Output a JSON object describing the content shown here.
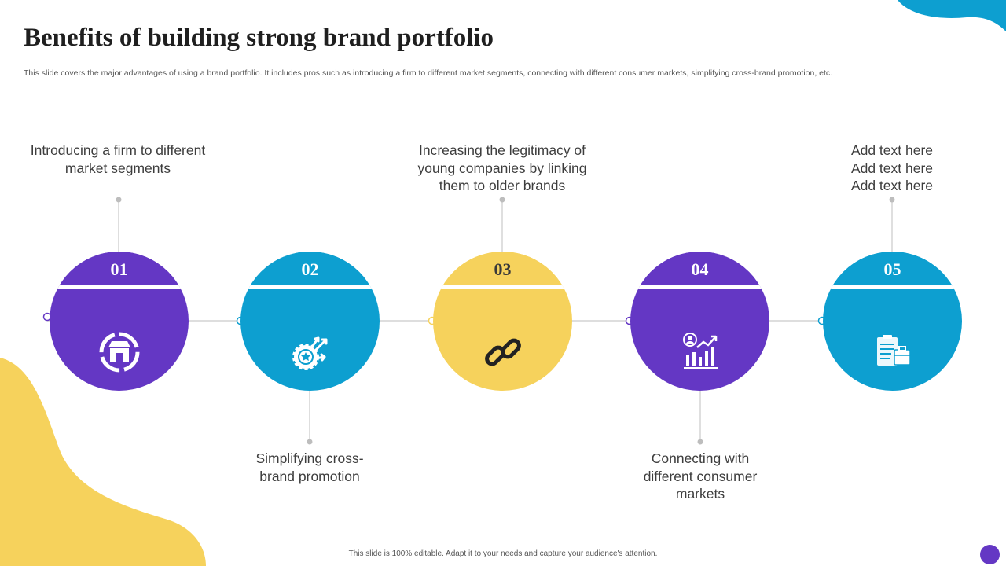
{
  "slide": {
    "title": "Benefits of building strong brand portfolio",
    "subtitle": "This slide covers the major advantages of using a brand portfolio. It includes pros such as introducing a firm to different market segments, connecting with different consumer markets, simplifying cross-brand promotion, etc.",
    "footer": "This slide is 100% editable. Adapt it to your needs and capture your audience's attention."
  },
  "colors": {
    "purple": "#6437c4",
    "blue": "#0d9fd0",
    "yellow": "#f6d25c",
    "line": "#c9c9c9"
  },
  "steps": [
    {
      "number": "01",
      "color": "purple",
      "icon": "store-icon",
      "text": "Introducing a firm to different market segments",
      "position": "top"
    },
    {
      "number": "02",
      "color": "blue",
      "icon": "growth-badge-icon",
      "text": "Simplifying cross-brand promotion",
      "position": "bottom"
    },
    {
      "number": "03",
      "color": "yellow",
      "icon": "link-icon",
      "text": "Increasing the legitimacy of young companies by linking them to older brands",
      "position": "top"
    },
    {
      "number": "04",
      "color": "purple",
      "icon": "growth-chart-icon",
      "text": "Connecting with different consumer markets",
      "position": "bottom"
    },
    {
      "number": "05",
      "color": "blue",
      "icon": "documents-icon",
      "text": "Add text here Add text here Add text here",
      "position": "top"
    }
  ]
}
